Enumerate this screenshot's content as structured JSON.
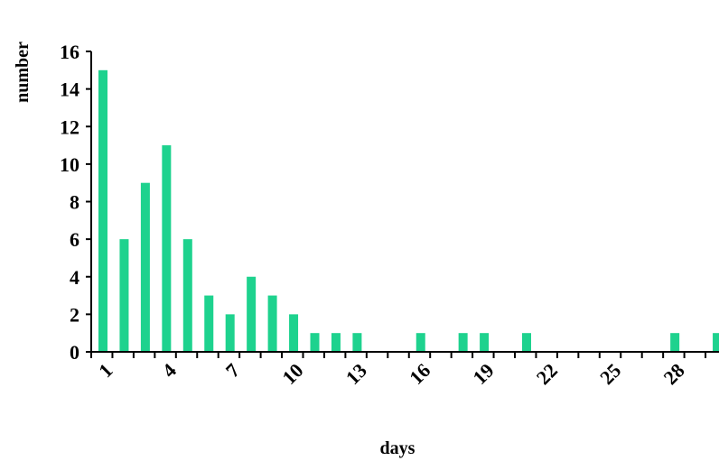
{
  "chart_data": {
    "type": "bar",
    "xlabel": "days",
    "ylabel": "number",
    "ylim": [
      0,
      16
    ],
    "yticks": [
      0,
      2,
      4,
      6,
      8,
      10,
      12,
      14,
      16
    ],
    "xtick_labels": [
      "1",
      "4",
      "7",
      "10",
      "13",
      "16",
      "19",
      "22",
      "25",
      "28"
    ],
    "categories": [
      1,
      2,
      3,
      4,
      5,
      6,
      7,
      8,
      9,
      10,
      11,
      12,
      13,
      14,
      15,
      16,
      17,
      18,
      19,
      20,
      21,
      22,
      23,
      24,
      25,
      26,
      27,
      28,
      29,
      30
    ],
    "values": [
      15,
      6,
      9,
      11,
      6,
      3,
      2,
      4,
      3,
      2,
      1,
      1,
      1,
      0,
      0,
      1,
      0,
      1,
      1,
      0,
      1,
      0,
      0,
      0,
      0,
      0,
      0,
      1,
      0,
      1
    ],
    "grid": false,
    "bar_color": "#1ed28e"
  }
}
